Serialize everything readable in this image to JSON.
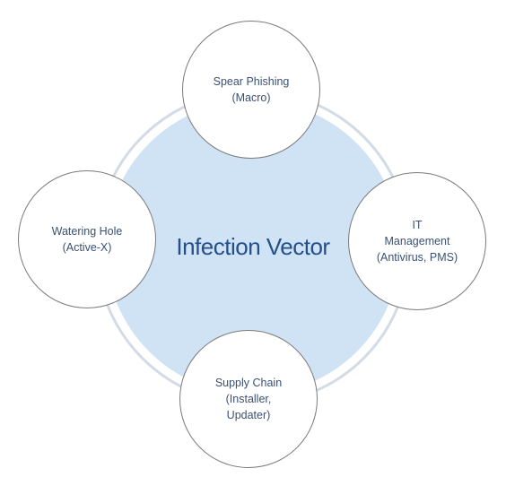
{
  "diagram": {
    "center_label": "Infection Vector",
    "nodes": [
      {
        "id": "top",
        "lines": [
          "Spear Phishing",
          "(Macro)"
        ]
      },
      {
        "id": "right",
        "lines": [
          "IT",
          "Management",
          "(Antivirus, PMS)"
        ]
      },
      {
        "id": "bottom",
        "lines": [
          "Supply Chain",
          "(Installer,",
          "Updater)"
        ]
      },
      {
        "id": "left",
        "lines": [
          "Watering Hole",
          "(Active-X)"
        ]
      }
    ]
  },
  "colors": {
    "center_fill": "#cfe3f5",
    "ring_border": "#d2dbe6",
    "center_text": "#254f8a",
    "node_text": "#3a5173",
    "node_border": "#7a7a7a"
  }
}
